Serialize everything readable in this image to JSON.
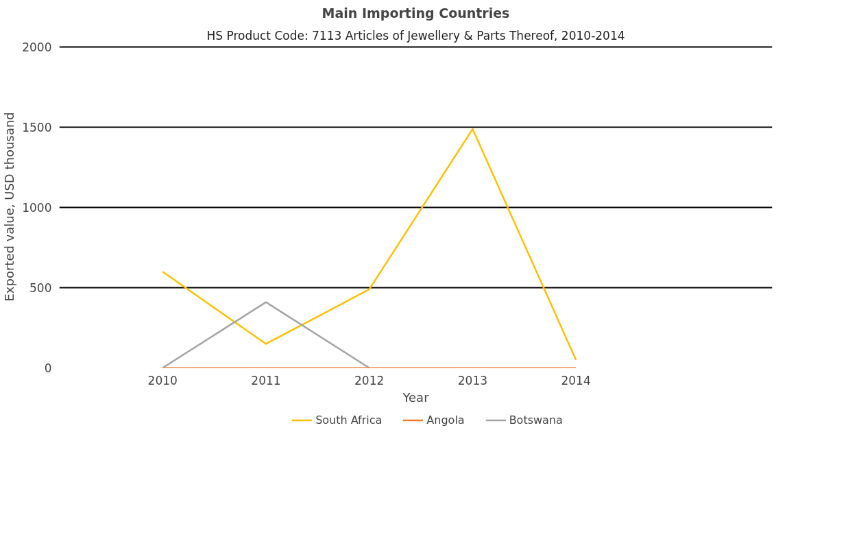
{
  "chart_data": {
    "type": "line",
    "title": "Main Importing Countries",
    "subtitle": "HS Product Code: 7113 Articles of Jewellery & Parts Thereof, 2010-2014",
    "xlabel": "Year",
    "ylabel": "Exported value, USD thousand",
    "categories": [
      "2010",
      "2011",
      "2012",
      "2013",
      "2014"
    ],
    "series": [
      {
        "name": "South Africa",
        "color": "#ffc000",
        "values": [
          600,
          150,
          490,
          1490,
          50
        ]
      },
      {
        "name": "Angola",
        "color": "#ed7d31",
        "values": [
          0,
          0,
          0,
          0,
          0
        ]
      },
      {
        "name": "Botswana",
        "color": "#a5a5a5",
        "values": [
          0,
          410,
          0,
          null,
          null
        ]
      }
    ],
    "ylim": [
      0,
      2010
    ],
    "yticks": [
      0,
      500,
      1000,
      1500,
      2000
    ],
    "grid": "y",
    "legend": "bottom",
    "marker": "none",
    "line_style": "solid"
  }
}
